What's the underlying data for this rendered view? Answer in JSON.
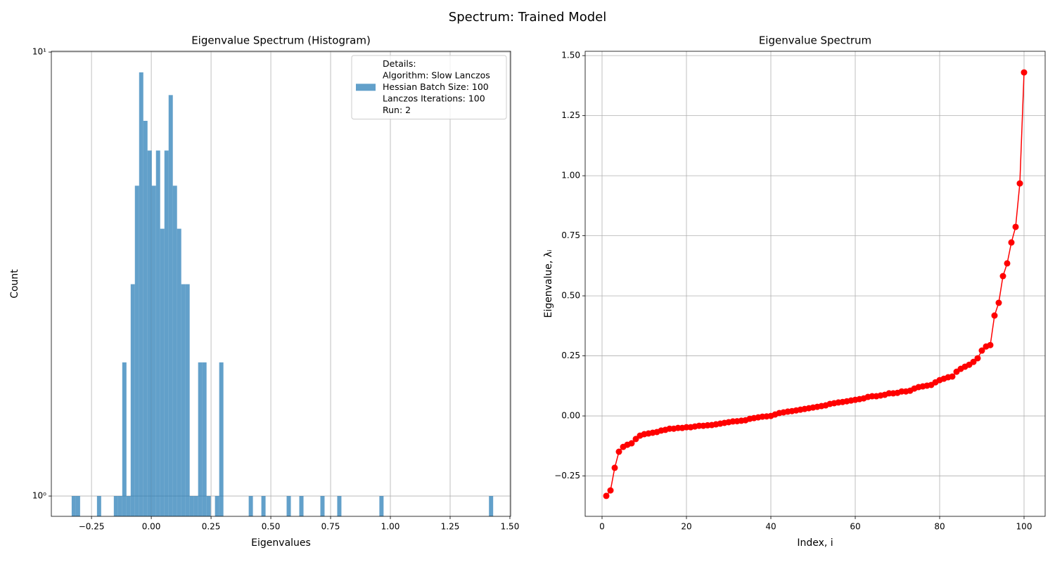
{
  "title": "Spectrum: Trained Model",
  "chart_data": [
    {
      "type": "histogram",
      "title": "Eigenvalue Spectrum (Histogram)",
      "xlabel": "Eigenvalues",
      "ylabel": "Count",
      "bins": [
        -0.333,
        -0.3154,
        -0.2977,
        -0.2801,
        -0.2625,
        -0.2449,
        -0.2272,
        -0.2096,
        -0.192,
        -0.1743,
        -0.1567,
        -0.1391,
        -0.1214,
        -0.1038,
        -0.0862,
        -0.0686,
        -0.0509,
        -0.0333,
        -0.0157,
        0.002,
        0.0196,
        0.0372,
        0.0549,
        0.0725,
        0.0901,
        0.1078,
        0.1254,
        0.143,
        0.1606,
        0.1783,
        0.1959,
        0.2135,
        0.2312,
        0.2488,
        0.2664,
        0.2841,
        0.3017,
        0.3193,
        0.3369,
        0.3546,
        0.3722,
        0.3898,
        0.4075,
        0.4251,
        0.4427,
        0.4604,
        0.478,
        0.4956,
        0.5132,
        0.5309,
        0.5485,
        0.5661,
        0.5838,
        0.6014,
        0.619,
        0.6367,
        0.6543,
        0.6719,
        0.6895,
        0.7072,
        0.7248,
        0.7424,
        0.7601,
        0.7777,
        0.7953,
        0.813,
        0.8306,
        0.8482,
        0.8658,
        0.8835,
        0.9011,
        0.9187,
        0.9364,
        0.954,
        0.9716,
        0.9893,
        1.0069,
        1.0245,
        1.0421,
        1.0598,
        1.0774,
        1.095,
        1.1127,
        1.1303,
        1.1479,
        1.1656,
        1.1832,
        1.2008,
        1.2184,
        1.2361,
        1.2537,
        1.2713,
        1.289,
        1.3066,
        1.3242,
        1.3419,
        1.3595,
        1.3771,
        1.3947,
        1.4124,
        1.43
      ],
      "series": [
        {
          "name": [
            "Details:",
            "Algorithm: Slow Lanczos",
            "Hessian Batch Size: 100",
            "Lanczos Iterations: 100",
            "Run: 2"
          ],
          "color": "#1f77b4",
          "alpha": 0.7,
          "values": [
            1,
            1,
            0,
            0,
            0,
            0,
            1,
            0,
            0,
            0,
            1,
            1,
            2,
            1,
            3,
            5,
            9,
            7,
            6,
            5,
            6,
            4,
            6,
            8,
            5,
            4,
            3,
            3,
            1,
            1,
            2,
            2,
            1,
            0,
            1,
            2,
            0,
            0,
            0,
            0,
            0,
            0,
            1,
            0,
            0,
            1,
            0,
            0,
            0,
            0,
            0,
            1,
            0,
            0,
            1,
            0,
            0,
            0,
            0,
            1,
            0,
            0,
            0,
            1,
            0,
            0,
            0,
            0,
            0,
            0,
            0,
            0,
            0,
            1,
            0,
            0,
            0,
            0,
            0,
            0,
            0,
            0,
            0,
            0,
            0,
            0,
            0,
            0,
            0,
            0,
            0,
            0,
            0,
            0,
            0,
            0,
            0,
            0,
            0,
            1
          ]
        }
      ],
      "xlim": [
        -0.418,
        1.503
      ],
      "xticks": [
        {
          "value": -0.25,
          "label": "−0.25"
        },
        {
          "value": 0,
          "label": "0.00"
        },
        {
          "value": 0.25,
          "label": "0.25"
        },
        {
          "value": 0.5,
          "label": "0.50"
        },
        {
          "value": 0.75,
          "label": "0.75"
        },
        {
          "value": 1,
          "label": "1.00"
        },
        {
          "value": 1.25,
          "label": "1.25"
        },
        {
          "value": 1.5,
          "label": "1.50"
        }
      ],
      "ylim": [
        0.9,
        10.04
      ],
      "yticks": [
        {
          "value": 1,
          "label": "10⁰"
        },
        {
          "value": 10,
          "label": "10¹"
        }
      ],
      "ylog": true,
      "grid": true,
      "legend": "upper right"
    },
    {
      "type": "line",
      "title": "Eigenvalue Spectrum",
      "xlabel": "Index, i",
      "ylabel": "Eigenvalue, λᵢ",
      "x": [
        1,
        2,
        3,
        4,
        5,
        6,
        7,
        8,
        9,
        10,
        11,
        12,
        13,
        14,
        15,
        16,
        17,
        18,
        19,
        20,
        21,
        22,
        23,
        24,
        25,
        26,
        27,
        28,
        29,
        30,
        31,
        32,
        33,
        34,
        35,
        36,
        37,
        38,
        39,
        40,
        41,
        42,
        43,
        44,
        45,
        46,
        47,
        48,
        49,
        50,
        51,
        52,
        53,
        54,
        55,
        56,
        57,
        58,
        59,
        60,
        61,
        62,
        63,
        64,
        65,
        66,
        67,
        68,
        69,
        70,
        71,
        72,
        73,
        74,
        75,
        76,
        77,
        78,
        79,
        80,
        81,
        82,
        83,
        84,
        85,
        86,
        87,
        88,
        89,
        90,
        91,
        92,
        93,
        94,
        95,
        96,
        97,
        98,
        99,
        100
      ],
      "series": [
        {
          "color": "#ff0000",
          "values": [
            -0.333,
            -0.31,
            -0.216,
            -0.149,
            -0.129,
            -0.12,
            -0.114,
            -0.096,
            -0.082,
            -0.076,
            -0.073,
            -0.07,
            -0.067,
            -0.061,
            -0.058,
            -0.053,
            -0.053,
            -0.05,
            -0.05,
            -0.047,
            -0.047,
            -0.044,
            -0.041,
            -0.041,
            -0.039,
            -0.038,
            -0.035,
            -0.032,
            -0.029,
            -0.026,
            -0.023,
            -0.022,
            -0.02,
            -0.018,
            -0.012,
            -0.009,
            -0.006,
            -0.003,
            -0.002,
            0.0,
            0.006,
            0.012,
            0.015,
            0.018,
            0.02,
            0.023,
            0.026,
            0.029,
            0.032,
            0.035,
            0.038,
            0.041,
            0.044,
            0.05,
            0.053,
            0.056,
            0.058,
            0.061,
            0.064,
            0.067,
            0.07,
            0.073,
            0.079,
            0.082,
            0.082,
            0.085,
            0.088,
            0.094,
            0.094,
            0.096,
            0.102,
            0.102,
            0.105,
            0.114,
            0.12,
            0.123,
            0.126,
            0.129,
            0.14,
            0.149,
            0.155,
            0.161,
            0.164,
            0.184,
            0.196,
            0.205,
            0.213,
            0.225,
            0.24,
            0.272,
            0.289,
            0.295,
            0.418,
            0.471,
            0.582,
            0.635,
            0.722,
            0.787,
            0.968,
            1.43
          ]
        }
      ],
      "xlim": [
        -4,
        105
      ],
      "xticks": [
        0,
        20,
        40,
        60,
        80,
        100
      ],
      "ylim": [
        -0.418,
        1.518
      ],
      "yticks": [
        {
          "value": -0.25,
          "label": "−0.25"
        },
        {
          "value": 0,
          "label": "0.00"
        },
        {
          "value": 0.25,
          "label": "0.25"
        },
        {
          "value": 0.5,
          "label": "0.50"
        },
        {
          "value": 0.75,
          "label": "0.75"
        },
        {
          "value": 1,
          "label": "1.00"
        },
        {
          "value": 1.25,
          "label": "1.25"
        },
        {
          "value": 1.5,
          "label": "1.50"
        }
      ],
      "grid": true
    }
  ]
}
